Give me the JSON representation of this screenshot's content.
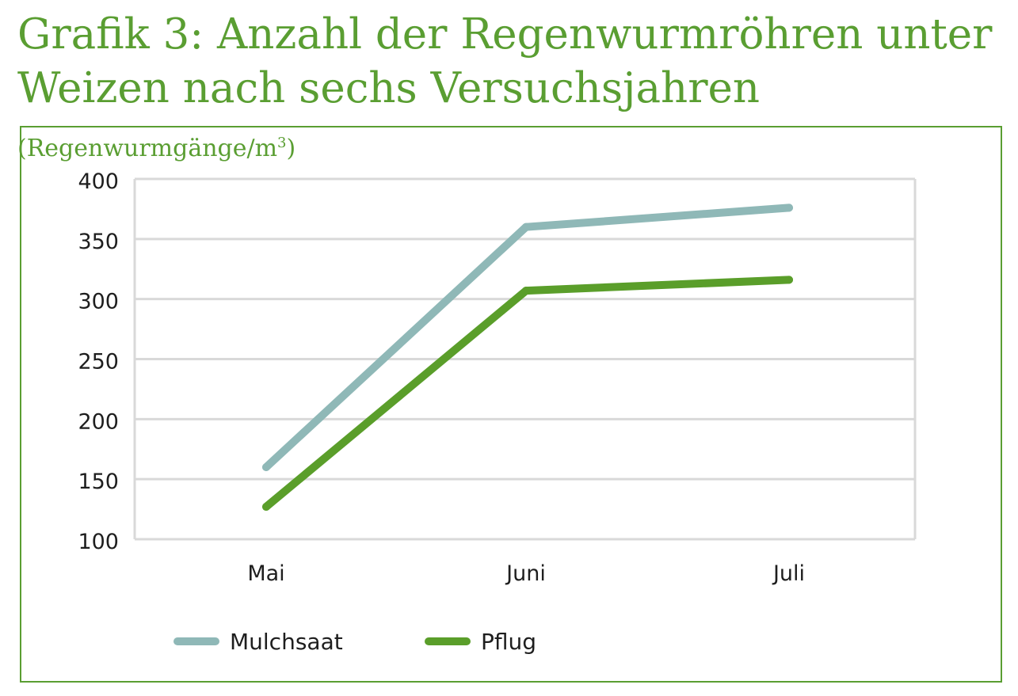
{
  "title": {
    "line1": "Grafik 3: Anzahl der Regenwurmröhren unter",
    "line2": "Weizen nach sechs Versuchsjahren",
    "unit_prefix": "(Regenwurmgänge/m",
    "unit_sup": "3",
    "unit_suffix": ")"
  },
  "colors": {
    "title": "#5a9e32",
    "frame": "#5a9e32",
    "grid": "#d9d9d9",
    "mulchsaat": "#8fb8b7",
    "pflug": "#5a9e2a"
  },
  "chart_data": {
    "type": "line",
    "categories": [
      "Mai",
      "Juni",
      "Juli"
    ],
    "series": [
      {
        "name": "Mulchsaat",
        "values": [
          160,
          360,
          376
        ]
      },
      {
        "name": "Pflug",
        "values": [
          127,
          307,
          316
        ]
      }
    ],
    "yticks": [
      100,
      150,
      200,
      250,
      300,
      350,
      400
    ],
    "ylim": [
      100,
      400
    ],
    "gridlines": [
      150,
      200,
      250,
      300,
      350,
      400
    ],
    "grid": true,
    "legend_position": "bottom",
    "xlabel": "",
    "ylabel": ""
  }
}
